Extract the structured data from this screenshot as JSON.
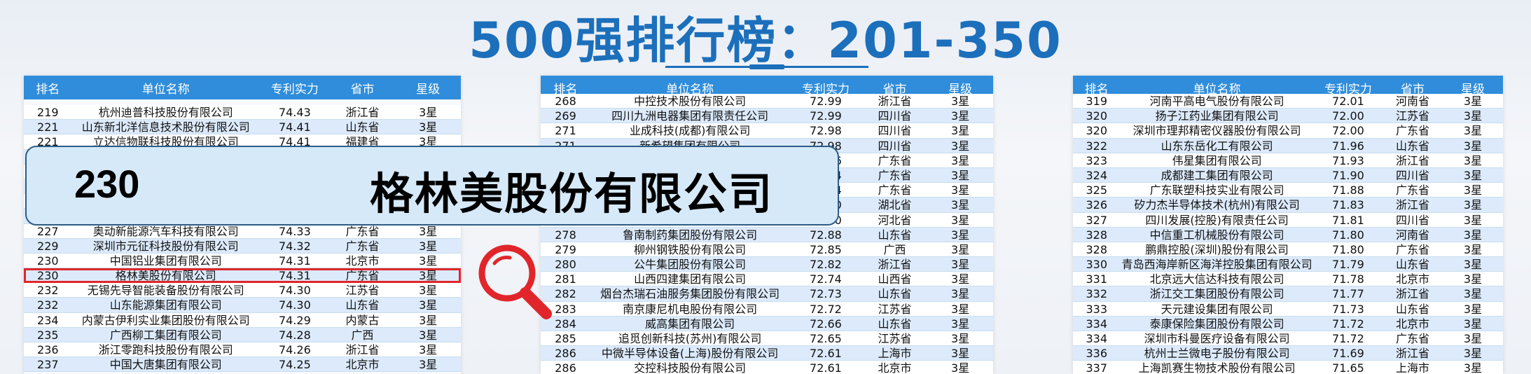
{
  "title": "500强排行榜：201-350",
  "headers": [
    "排名",
    "单位名称",
    "专利实力",
    "省市",
    "星级"
  ],
  "colors": {
    "header_bg": "#2f8ddb",
    "title": "#1c6fbb",
    "highlight": "#e0262a"
  },
  "overlay": {
    "rank": "230",
    "name": "格林美股份有限公司"
  },
  "icons": {
    "magnifier": "magnifier-icon"
  },
  "panels": [
    {
      "rows": [
        [
          "219",
          "杭州迪普科技股份有限公司",
          "74.43",
          "浙江省",
          "3星"
        ],
        [
          "221",
          "山东新北洋信息技术股份有限公司",
          "74.41",
          "山东省",
          "3星"
        ],
        [
          "221",
          "立达信物联科技股份有限公司",
          "74.41",
          "福建省",
          "3星"
        ],
        [
          "",
          "",
          "",
          "",
          ""
        ],
        [
          "",
          "",
          "",
          "",
          ""
        ],
        [
          "",
          "",
          "",
          "",
          ""
        ],
        [
          "",
          "",
          "",
          "",
          ""
        ],
        [
          "",
          "",
          "",
          "",
          ""
        ],
        [
          "227",
          "奥动新能源汽车科技有限公司",
          "74.33",
          "广东省",
          "3星"
        ],
        [
          "229",
          "深圳市元征科技股份有限公司",
          "74.32",
          "广东省",
          "3星"
        ],
        [
          "230",
          "中国铝业集团有限公司",
          "74.31",
          "北京市",
          "3星"
        ],
        [
          "230",
          "格林美股份有限公司",
          "74.31",
          "广东省",
          "3星"
        ],
        [
          "232",
          "无锡先导智能装备股份有限公司",
          "74.30",
          "江苏省",
          "3星"
        ],
        [
          "232",
          "山东能源集团有限公司",
          "74.30",
          "山东省",
          "3星"
        ],
        [
          "234",
          "内蒙古伊利实业集团股份有限公司",
          "74.29",
          "内蒙古",
          "3星"
        ],
        [
          "235",
          "广西柳工集团有限公司",
          "74.28",
          "广西",
          "3星"
        ],
        [
          "236",
          "浙江零跑科技股份有限公司",
          "74.26",
          "浙江省",
          "3星"
        ],
        [
          "237",
          "中国大唐集团有限公司",
          "74.25",
          "北京市",
          "3星"
        ]
      ]
    },
    {
      "rows": [
        [
          "268",
          "中控技术股份有限公司",
          "72.99",
          "浙江省",
          "3星"
        ],
        [
          "269",
          "四川九洲电器集团有限责任公司",
          "72.99",
          "四川省",
          "3星"
        ],
        [
          "271",
          "业成科技(成都)有限公司",
          "72.98",
          "四川省",
          "3星"
        ],
        [
          "271",
          "新希望集团有限公司",
          "72.98",
          "四川省",
          "3星"
        ],
        [
          "",
          "",
          "72.96",
          "广东省",
          "3星"
        ],
        [
          "",
          "",
          "72.94",
          "广东省",
          "3星"
        ],
        [
          "",
          "",
          "72.94",
          "广东省",
          "3星"
        ],
        [
          "",
          "",
          "72.90",
          "湖北省",
          "3星"
        ],
        [
          "",
          "",
          "72.90",
          "河北省",
          "3星"
        ],
        [
          "278",
          "鲁南制药集团股份有限公司",
          "72.88",
          "山东省",
          "3星"
        ],
        [
          "279",
          "柳州钢铁股份有限公司",
          "72.85",
          "广西",
          "3星"
        ],
        [
          "280",
          "公牛集团股份有限公司",
          "72.82",
          "浙江省",
          "3星"
        ],
        [
          "281",
          "山西四建集团有限公司",
          "72.74",
          "山西省",
          "3星"
        ],
        [
          "282",
          "烟台杰瑞石油服务集团股份有限公司",
          "72.73",
          "山东省",
          "3星"
        ],
        [
          "283",
          "南京康尼机电股份有限公司",
          "72.72",
          "江苏省",
          "3星"
        ],
        [
          "284",
          "威高集团有限公司",
          "72.66",
          "山东省",
          "3星"
        ],
        [
          "285",
          "追觅创新科技(苏州)有限公司",
          "72.65",
          "江苏省",
          "3星"
        ],
        [
          "286",
          "中微半导体设备(上海)股份有限公司",
          "72.61",
          "上海市",
          "3星"
        ],
        [
          "286",
          "交控科技股份有限公司",
          "72.61",
          "北京市",
          "3星"
        ]
      ]
    },
    {
      "rows": [
        [
          "319",
          "河南平高电气股份有限公司",
          "72.01",
          "河南省",
          "3星"
        ],
        [
          "320",
          "扬子江药业集团有限公司",
          "72.00",
          "江苏省",
          "3星"
        ],
        [
          "320",
          "深圳市理邦精密仪器股份有限公司",
          "72.00",
          "广东省",
          "3星"
        ],
        [
          "322",
          "山东东岳化工有限公司",
          "71.96",
          "山东省",
          "3星"
        ],
        [
          "323",
          "伟星集团有限公司",
          "71.93",
          "浙江省",
          "3星"
        ],
        [
          "324",
          "成都建工集团有限公司",
          "71.90",
          "四川省",
          "3星"
        ],
        [
          "325",
          "广东联塑科技实业有限公司",
          "71.88",
          "广东省",
          "3星"
        ],
        [
          "326",
          "矽力杰半导体技术(杭州)有限公司",
          "71.83",
          "浙江省",
          "3星"
        ],
        [
          "327",
          "四川发展(控股)有限责任公司",
          "71.81",
          "四川省",
          "3星"
        ],
        [
          "328",
          "中信重工机械股份有限公司",
          "71.80",
          "河南省",
          "3星"
        ],
        [
          "328",
          "鹏鼎控股(深圳)股份有限公司",
          "71.80",
          "广东省",
          "3星"
        ],
        [
          "330",
          "青岛西海岸新区海洋控股集团有限公司",
          "71.79",
          "山东省",
          "3星"
        ],
        [
          "331",
          "北京远大信达科技有限公司",
          "71.78",
          "北京市",
          "3星"
        ],
        [
          "332",
          "浙江交工集团股份有限公司",
          "71.77",
          "浙江省",
          "3星"
        ],
        [
          "333",
          "天元建设集团有限公司",
          "71.73",
          "山东省",
          "3星"
        ],
        [
          "334",
          "泰康保险集团股份有限公司",
          "71.72",
          "北京市",
          "3星"
        ],
        [
          "334",
          "深圳市科曼医疗设备有限公司",
          "71.72",
          "广东省",
          "3星"
        ],
        [
          "336",
          "杭州士兰微电子股份有限公司",
          "71.69",
          "浙江省",
          "3星"
        ],
        [
          "337",
          "上海凯赛生物技术股份有限公司",
          "71.65",
          "上海市",
          "3星"
        ]
      ]
    }
  ]
}
